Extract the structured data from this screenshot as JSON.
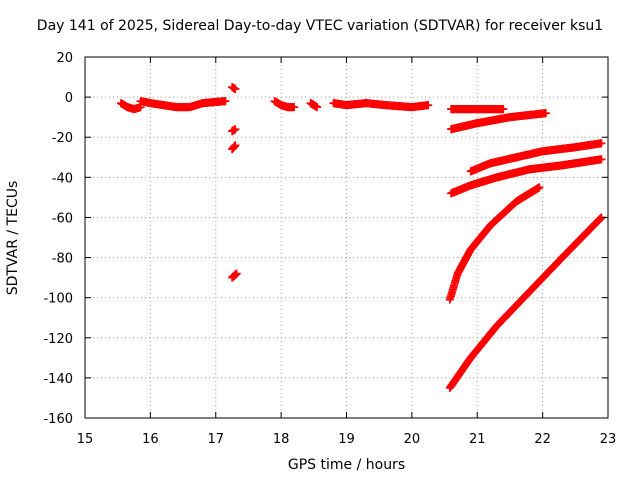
{
  "chart_data": {
    "type": "scatter",
    "title": "Day 141 of 2025, Sidereal Day-to-day VTEC variation (SDTVAR) for receiver ksu1",
    "xlabel": "GPS time / hours",
    "ylabel": "SDTVAR / TECUs",
    "xlim": [
      15,
      23
    ],
    "ylim": [
      -160,
      20
    ],
    "xticks": [
      "15",
      "16",
      "17",
      "18",
      "19",
      "20",
      "21",
      "22",
      "23"
    ],
    "yticks": [
      "20",
      "0",
      "-20",
      "-40",
      "-60",
      "-80",
      "-100",
      "-120",
      "-140",
      "-160"
    ],
    "grid": true,
    "marker": "plus",
    "color": "#ff0000",
    "series": [
      {
        "name": "seg1",
        "x": [
          15.55,
          15.65,
          15.75,
          15.85
        ],
        "y": [
          -3,
          -5,
          -6,
          -5
        ]
      },
      {
        "name": "seg2",
        "x": [
          15.85,
          16.0,
          16.2,
          16.4,
          16.6,
          16.8,
          17.15
        ],
        "y": [
          -2,
          -3,
          -4,
          -5,
          -5,
          -3,
          -2
        ]
      },
      {
        "name": "seg3",
        "x": [
          17.25,
          17.3
        ],
        "y": [
          5,
          4
        ]
      },
      {
        "name": "seg4",
        "x": [
          17.25,
          17.3
        ],
        "y": [
          -17,
          -16
        ]
      },
      {
        "name": "seg5",
        "x": [
          17.25,
          17.3
        ],
        "y": [
          -26,
          -24
        ]
      },
      {
        "name": "seg6",
        "x": [
          17.25,
          17.32
        ],
        "y": [
          -90,
          -88
        ]
      },
      {
        "name": "seg7",
        "x": [
          17.9,
          18.0,
          18.1,
          18.2
        ],
        "y": [
          -2,
          -4,
          -5,
          -5
        ]
      },
      {
        "name": "seg8",
        "x": [
          18.45,
          18.55
        ],
        "y": [
          -3,
          -5
        ]
      },
      {
        "name": "seg9",
        "x": [
          18.8,
          19.0,
          19.3,
          19.6,
          20.0,
          20.25
        ],
        "y": [
          -3,
          -4,
          -3,
          -4,
          -5,
          -4
        ]
      },
      {
        "name": "seg10",
        "x": [
          20.6,
          21.0,
          21.4
        ],
        "y": [
          -6,
          -6,
          -6
        ]
      },
      {
        "name": "seg11",
        "x": [
          20.6,
          21.0,
          21.5,
          22.05
        ],
        "y": [
          -16,
          -13,
          -10,
          -8
        ]
      },
      {
        "name": "seg12",
        "x": [
          20.9,
          21.2,
          21.6,
          22.0,
          22.5,
          22.9
        ],
        "y": [
          -37,
          -33,
          -30,
          -27,
          -25,
          -23
        ]
      },
      {
        "name": "seg13",
        "x": [
          20.6,
          20.9,
          21.3,
          21.8,
          22.3,
          22.9
        ],
        "y": [
          -48,
          -44,
          -40,
          -36,
          -34,
          -31
        ]
      },
      {
        "name": "seg14",
        "x": [
          20.58,
          20.7,
          20.9,
          21.2,
          21.6,
          21.95
        ],
        "y": [
          -101,
          -88,
          -76,
          -64,
          -52,
          -45
        ]
      },
      {
        "name": "seg15",
        "x": [
          20.58,
          20.9,
          21.3,
          21.8,
          22.3,
          22.9
        ],
        "y": [
          -145,
          -130,
          -114,
          -97,
          -80,
          -60
        ]
      }
    ]
  }
}
